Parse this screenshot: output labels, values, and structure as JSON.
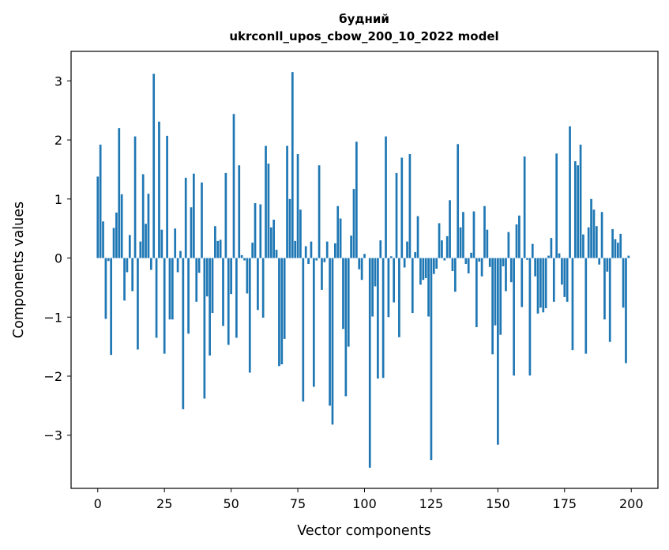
{
  "chart_data": {
    "type": "bar",
    "title": "будний",
    "subtitle": "ukrconll_upos_cbow_200_10_2022 model",
    "xlabel": "Vector components",
    "ylabel": "Components values",
    "xlim": [
      -10,
      210
    ],
    "ylim": [
      -3.9,
      3.5
    ],
    "xticks": [
      0,
      25,
      50,
      75,
      100,
      125,
      150,
      175,
      200
    ],
    "xtick_labels": [
      "0",
      "25",
      "50",
      "75",
      "100",
      "125",
      "150",
      "175",
      "200"
    ],
    "yticks": [
      3,
      2,
      1,
      0,
      -1,
      -2,
      -3
    ],
    "ytick_labels": [
      "3",
      "2",
      "1",
      "0",
      "−1",
      "−2",
      "−3"
    ],
    "bar_color": "#1f77b4",
    "values": [
      1.38,
      1.92,
      0.62,
      -1.03,
      -0.05,
      -1.64,
      0.51,
      0.77,
      2.2,
      1.08,
      -0.72,
      -0.24,
      0.39,
      -0.56,
      2.06,
      -1.55,
      0.28,
      1.42,
      0.58,
      1.09,
      -0.2,
      3.12,
      -1.35,
      2.31,
      0.48,
      -1.62,
      2.07,
      -1.04,
      -1.04,
      0.5,
      -0.24,
      0.12,
      -2.56,
      1.36,
      -1.28,
      0.86,
      1.43,
      -0.74,
      -0.25,
      1.28,
      -2.38,
      -0.65,
      -1.65,
      -0.93,
      0.54,
      0.29,
      0.31,
      -1.15,
      1.44,
      -1.47,
      -0.61,
      2.44,
      -1.35,
      1.57,
      0.05,
      -0.04,
      -0.6,
      -1.94,
      0.26,
      0.93,
      -0.88,
      0.91,
      -1.01,
      1.9,
      1.6,
      0.52,
      0.65,
      0.14,
      -1.83,
      -1.8,
      -1.37,
      1.9,
      1.0,
      3.15,
      0.29,
      1.76,
      0.82,
      -2.43,
      0.2,
      -0.1,
      0.28,
      -2.18,
      -0.04,
      1.57,
      -0.54,
      -0.07,
      0.28,
      -2.5,
      -2.82,
      0.25,
      0.88,
      0.67,
      -1.2,
      -2.34,
      -1.5,
      0.38,
      1.17,
      1.97,
      -0.19,
      -0.37,
      0.07,
      0.0,
      -3.55,
      -0.99,
      -0.48,
      -2.04,
      0.3,
      -2.03,
      2.06,
      -1.0,
      0.03,
      -0.75,
      1.44,
      -1.34,
      1.7,
      -0.16,
      0.28,
      1.76,
      -0.93,
      0.1,
      0.71,
      -0.45,
      -0.37,
      -0.34,
      -0.99,
      -3.42,
      -0.27,
      -0.18,
      0.59,
      0.3,
      -0.04,
      0.37,
      0.98,
      -0.22,
      -0.57,
      1.93,
      0.52,
      0.78,
      -0.1,
      -0.26,
      0.09,
      0.79,
      -1.17,
      -0.06,
      -0.31,
      0.88,
      0.48,
      -0.15,
      -1.63,
      -1.14,
      -3.16,
      -1.3,
      -0.14,
      -0.56,
      0.44,
      -0.41,
      -1.99,
      0.57,
      0.72,
      -0.83,
      1.72,
      -0.03,
      -1.99,
      0.24,
      -0.31,
      -0.94,
      -0.84,
      -0.92,
      -0.85,
      0.04,
      0.34,
      -0.74,
      1.77,
      0.08,
      -0.45,
      -0.66,
      -0.74,
      2.23,
      -1.56,
      1.64,
      1.57,
      1.92,
      0.4,
      -1.62,
      0.52,
      1.0,
      0.82,
      0.54,
      -0.11,
      0.78,
      -1.04,
      -0.23,
      -1.42,
      0.49,
      0.32,
      0.26,
      0.41,
      -0.84,
      -1.78,
      0.04
    ]
  }
}
